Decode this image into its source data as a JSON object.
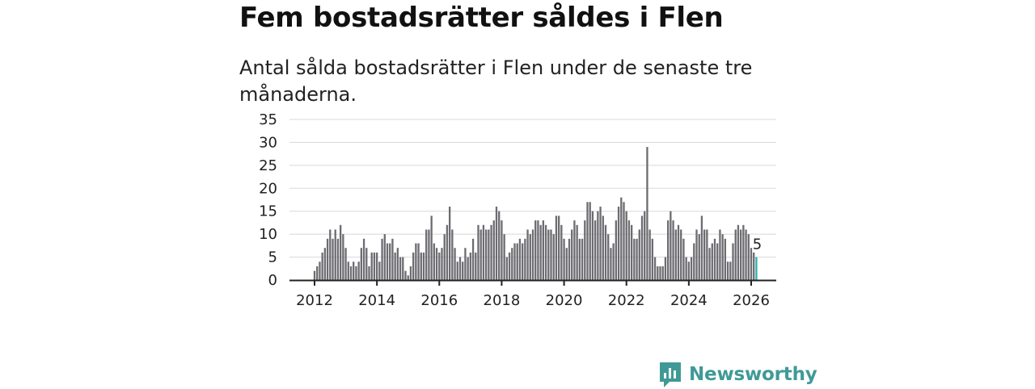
{
  "title": "Fem bostadsrätter såldes i Flen",
  "subtitle": "Antal sålda bostadsrätter i Flen under de senaste tre månaderna.",
  "brand": {
    "name": "Newsworthy",
    "icon": "newsworthy-logo-icon"
  },
  "colors": {
    "bar": "#6d6c71",
    "highlight": "#2ab3ad",
    "grid": "#d8d8d8",
    "axis": "#222222",
    "brand": "#3f9a97"
  },
  "chart_data": {
    "type": "bar",
    "title": "Fem bostadsrätter såldes i Flen",
    "xlabel": "",
    "ylabel": "",
    "ylim": [
      0,
      35
    ],
    "yticks": [
      0,
      5,
      10,
      15,
      20,
      25,
      30,
      35
    ],
    "xticks": [
      {
        "label": "2012",
        "year": 2012
      },
      {
        "label": "2014",
        "year": 2014
      },
      {
        "label": "2016",
        "year": 2016
      },
      {
        "label": "2018",
        "year": 2018
      },
      {
        "label": "2020",
        "year": 2020
      },
      {
        "label": "2022",
        "year": 2022
      },
      {
        "label": "2024",
        "year": 2024
      },
      {
        "label": "2026",
        "year": 2026
      }
    ],
    "start": "2012-01",
    "grid": true,
    "highlight_label": "5",
    "values": [
      2,
      3,
      4,
      6,
      7,
      9,
      11,
      9,
      11,
      9,
      12,
      10,
      7,
      4,
      3,
      4,
      3,
      4,
      7,
      9,
      7,
      3,
      6,
      6,
      6,
      4,
      9,
      10,
      8,
      8,
      9,
      6,
      7,
      5,
      5,
      2,
      1,
      3,
      6,
      8,
      8,
      6,
      6,
      11,
      11,
      14,
      8,
      7,
      6,
      7,
      10,
      12,
      16,
      11,
      7,
      4,
      5,
      4,
      7,
      5,
      6,
      9,
      6,
      12,
      11,
      12,
      11,
      11,
      12,
      13,
      16,
      15,
      13,
      10,
      5,
      6,
      7,
      8,
      8,
      9,
      8,
      9,
      11,
      10,
      11,
      13,
      13,
      12,
      13,
      12,
      11,
      11,
      10,
      14,
      14,
      12,
      9,
      7,
      9,
      11,
      13,
      12,
      9,
      9,
      13,
      17,
      17,
      15,
      13,
      15,
      16,
      14,
      12,
      10,
      7,
      8,
      13,
      16,
      18,
      17,
      15,
      13,
      12,
      9,
      9,
      11,
      14,
      15,
      29,
      11,
      9,
      5,
      3,
      3,
      3,
      5,
      13,
      15,
      13,
      11,
      12,
      11,
      9,
      5,
      4,
      5,
      8,
      11,
      10,
      14,
      11,
      11,
      7,
      8,
      9,
      8,
      11,
      10,
      9,
      4,
      4,
      8,
      11,
      12,
      11,
      12,
      11,
      10,
      7,
      6,
      5
    ]
  }
}
